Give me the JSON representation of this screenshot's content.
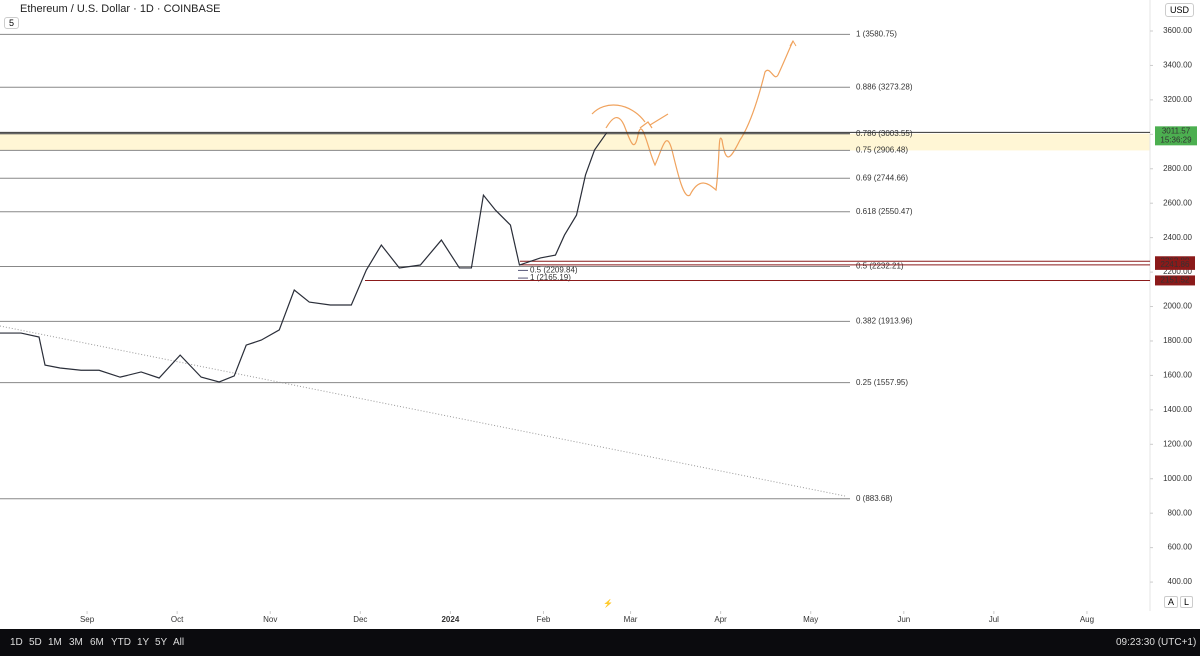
{
  "ui": {
    "symbol": "Ethereum / U.S. Dollar · 1D · COINBASE",
    "indicator_count": "5",
    "currency": "USD",
    "auto": "A",
    "log": "L",
    "ranges": [
      "1D",
      "5D",
      "1M",
      "3M",
      "6M",
      "YTD",
      "1Y",
      "5Y",
      "All"
    ],
    "clock": "09:23:30 (UTC+1)"
  },
  "chart_data": {
    "type": "line",
    "color": "#2a2e39",
    "x": [
      0,
      7,
      13,
      15,
      20,
      27,
      33,
      40,
      47,
      53,
      60,
      67,
      73,
      78,
      82,
      87,
      93,
      98,
      103,
      110,
      117,
      122,
      127,
      133,
      140,
      147,
      153,
      157,
      161,
      165,
      170,
      173,
      180,
      185,
      188,
      192,
      195,
      198,
      202
    ],
    "values": [
      1846,
      1846,
      1823,
      1660,
      1643,
      1630,
      1630,
      1590,
      1620,
      1585,
      1718,
      1590,
      1562,
      1597,
      1776,
      1805,
      1864,
      2096,
      2026,
      2009,
      2009,
      2212,
      2357,
      2224,
      2241,
      2386,
      2224,
      2224,
      2647,
      2560,
      2473,
      2241,
      2282,
      2299,
      2415,
      2531,
      2764,
      2909,
      3008
    ],
    "xlim": [
      0,
      383
    ],
    "xticks": [
      {
        "value": 29,
        "label": "Sep"
      },
      {
        "value": 59,
        "label": "Oct"
      },
      {
        "value": 90,
        "label": "Nov"
      },
      {
        "value": 120,
        "label": "Dec"
      },
      {
        "value": 150,
        "label": "2024"
      },
      {
        "value": 181,
        "label": "Feb"
      },
      {
        "value": 210,
        "label": "Mar"
      },
      {
        "value": 240,
        "label": "Apr"
      },
      {
        "value": 270,
        "label": "May"
      },
      {
        "value": 301,
        "label": "Jun"
      },
      {
        "value": 331,
        "label": "Jul"
      },
      {
        "value": 362,
        "label": "Aug"
      }
    ],
    "ylim": [
      232,
      3780
    ],
    "yticks": [
      {
        "value": 400,
        "label": "400.00"
      },
      {
        "value": 600,
        "label": "600.00"
      },
      {
        "value": 800,
        "label": "800.00"
      },
      {
        "value": 1000,
        "label": "1000.00"
      },
      {
        "value": 1200,
        "label": "1200.00"
      },
      {
        "value": 1400,
        "label": "1400.00"
      },
      {
        "value": 1600,
        "label": "1600.00"
      },
      {
        "value": 1800,
        "label": "1800.00"
      },
      {
        "value": 2000,
        "label": "2000.00"
      },
      {
        "value": 2200,
        "label": "2200.00"
      },
      {
        "value": 2400,
        "label": "2400.00"
      },
      {
        "value": 2600,
        "label": "2600.00"
      },
      {
        "value": 2800,
        "label": "2800.00"
      },
      {
        "value": 3000,
        "label": "3000.00"
      },
      {
        "value": 3200,
        "label": "3200.00"
      },
      {
        "value": 3400,
        "label": "3400.00"
      },
      {
        "value": 3600,
        "label": "3600.00"
      }
    ],
    "fib_levels": [
      {
        "value": 3580.75,
        "label": "1 (3580.75)"
      },
      {
        "value": 3273.28,
        "label": "0.886 (3273.28)"
      },
      {
        "value": 3003.55,
        "label": "0.786 (3003.55)"
      },
      {
        "value": 2906.48,
        "label": "0.75 (2906.48)"
      },
      {
        "value": 2744.66,
        "label": "0.69 (2744.66)"
      },
      {
        "value": 2550.47,
        "label": "0.618 (2550.47)"
      },
      {
        "value": 2232.21,
        "label": "0.5 (2232.21)"
      },
      {
        "value": 1913.96,
        "label": "0.382 (1913.96)"
      },
      {
        "value": 1557.95,
        "label": "0.25 (1557.95)"
      },
      {
        "value": 883.68,
        "label": "0 (883.68)"
      }
    ],
    "small_fib": [
      {
        "value": 2209.84,
        "label": "0.5 (2209.84)"
      },
      {
        "value": 2165.19,
        "label": "1 (2165.19)"
      }
    ],
    "last_price": {
      "value": 3011.57,
      "label": "3011.57",
      "countdown": "15:36:29",
      "color": "#4caf50"
    },
    "price_lines": [
      {
        "value": 2262.89,
        "label": "2262.89"
      },
      {
        "value": 2241.86,
        "label": "2241.86"
      },
      {
        "value": 2151.52,
        "label": "2151.52"
      }
    ],
    "line_color": "#8b1a1a",
    "zone_color": "#fff6d5"
  }
}
